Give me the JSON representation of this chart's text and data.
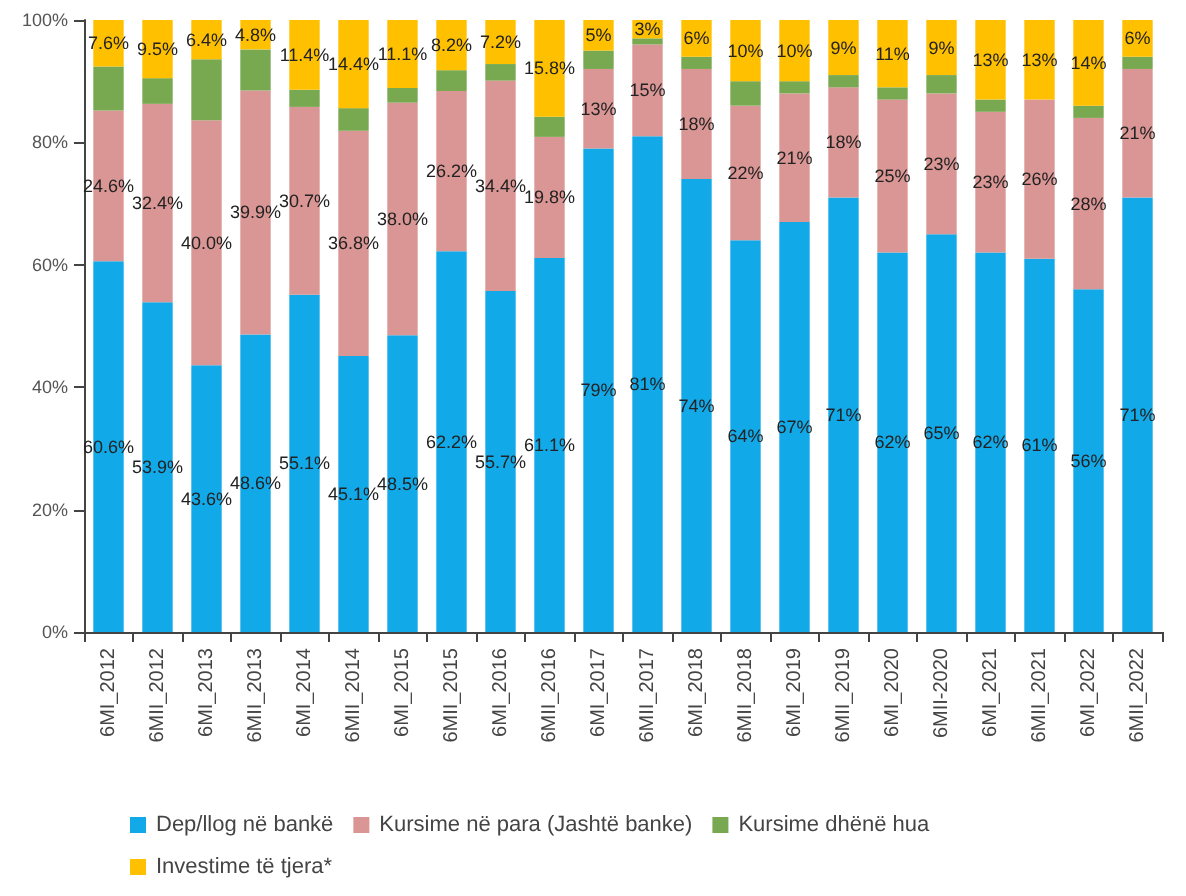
{
  "chart_data": {
    "type": "bar",
    "stacked": true,
    "legend": "bottom",
    "categories": [
      "6MI_2012",
      "6MII_2012",
      "6MI_2013",
      "6MII_2013",
      "6MI_2014",
      "6MII_2014",
      "6MI_2015",
      "6MII_2015",
      "6MI_2016",
      "6MII_2016",
      "6MI_2017",
      "6MII_2017",
      "6MI_2018",
      "6MII_2018",
      "6MI_2019",
      "6MII_2019",
      "6MI_2020",
      "6MII-2020",
      "6MI_2021",
      "6MII_2021",
      "6MI_2022",
      "6MII_2022"
    ],
    "ylim": [
      0,
      100
    ],
    "yticks": [
      {
        "value": 0,
        "label": "0%"
      },
      {
        "value": 20,
        "label": "20%"
      },
      {
        "value": 40,
        "label": "40%"
      },
      {
        "value": 60,
        "label": "60%"
      },
      {
        "value": 80,
        "label": "80%"
      },
      {
        "value": 100,
        "label": "100%"
      }
    ],
    "series": [
      {
        "name": "Dep/llog në bankë",
        "color": "#12a9e8",
        "values": [
          60.6,
          53.9,
          43.6,
          48.6,
          55.1,
          45.1,
          48.5,
          62.2,
          55.7,
          61.1,
          79,
          81,
          74,
          64,
          67,
          71,
          62,
          65,
          62,
          61,
          56,
          71
        ],
        "value_labels": [
          "60.6%",
          "53.9%",
          "43.6%",
          "48.6%",
          "55.1%",
          "45.1%",
          "48.5%",
          "62.2%",
          "55.7%",
          "61.1%",
          "79%",
          "81%",
          "74%",
          "64%",
          "67%",
          "71%",
          "62%",
          "65%",
          "62%",
          "61%",
          "56%",
          "71%"
        ]
      },
      {
        "name": "Kursime në para (Jashtë banke)",
        "color": "#d99694",
        "values": [
          24.6,
          32.4,
          40.0,
          39.9,
          30.7,
          36.8,
          38.0,
          26.2,
          34.4,
          19.8,
          13,
          15,
          18,
          22,
          21,
          18,
          25,
          23,
          23,
          26,
          28,
          21
        ],
        "value_labels": [
          "24.6%",
          "32.4%",
          "40.0%",
          "39.9%",
          "30.7%",
          "36.8%",
          "38.0%",
          "26.2%",
          "34.4%",
          "19.8%",
          "13%",
          "15%",
          "18%",
          "22%",
          "21%",
          "18%",
          "25%",
          "23%",
          "23%",
          "26%",
          "28%",
          "21%"
        ]
      },
      {
        "name": "Kursime dhënë hua",
        "color": "#78a850",
        "values": [
          7.2,
          4.2,
          10.0,
          6.7,
          2.8,
          3.7,
          2.4,
          3.4,
          2.7,
          3.3,
          3,
          1,
          2,
          4,
          2,
          2,
          2,
          3,
          2,
          0,
          2,
          2
        ]
      },
      {
        "name": "Investime të tjera*",
        "color": "#ffc000",
        "values": [
          7.6,
          9.5,
          6.4,
          4.8,
          11.4,
          14.4,
          11.1,
          8.2,
          7.2,
          15.8,
          5,
          3,
          6,
          10,
          10,
          9,
          11,
          9,
          13,
          13,
          14,
          6
        ],
        "value_labels": [
          "7.6%",
          "9.5%",
          "6.4%",
          "4.8%",
          "11.4%",
          "14.4%",
          "11.1%",
          "8.2%",
          "7.2%",
          "15.8%",
          "5%",
          "3%",
          "6%",
          "10%",
          "10%",
          "9%",
          "11%",
          "9%",
          "13%",
          "13%",
          "14%",
          "6%"
        ]
      }
    ]
  }
}
